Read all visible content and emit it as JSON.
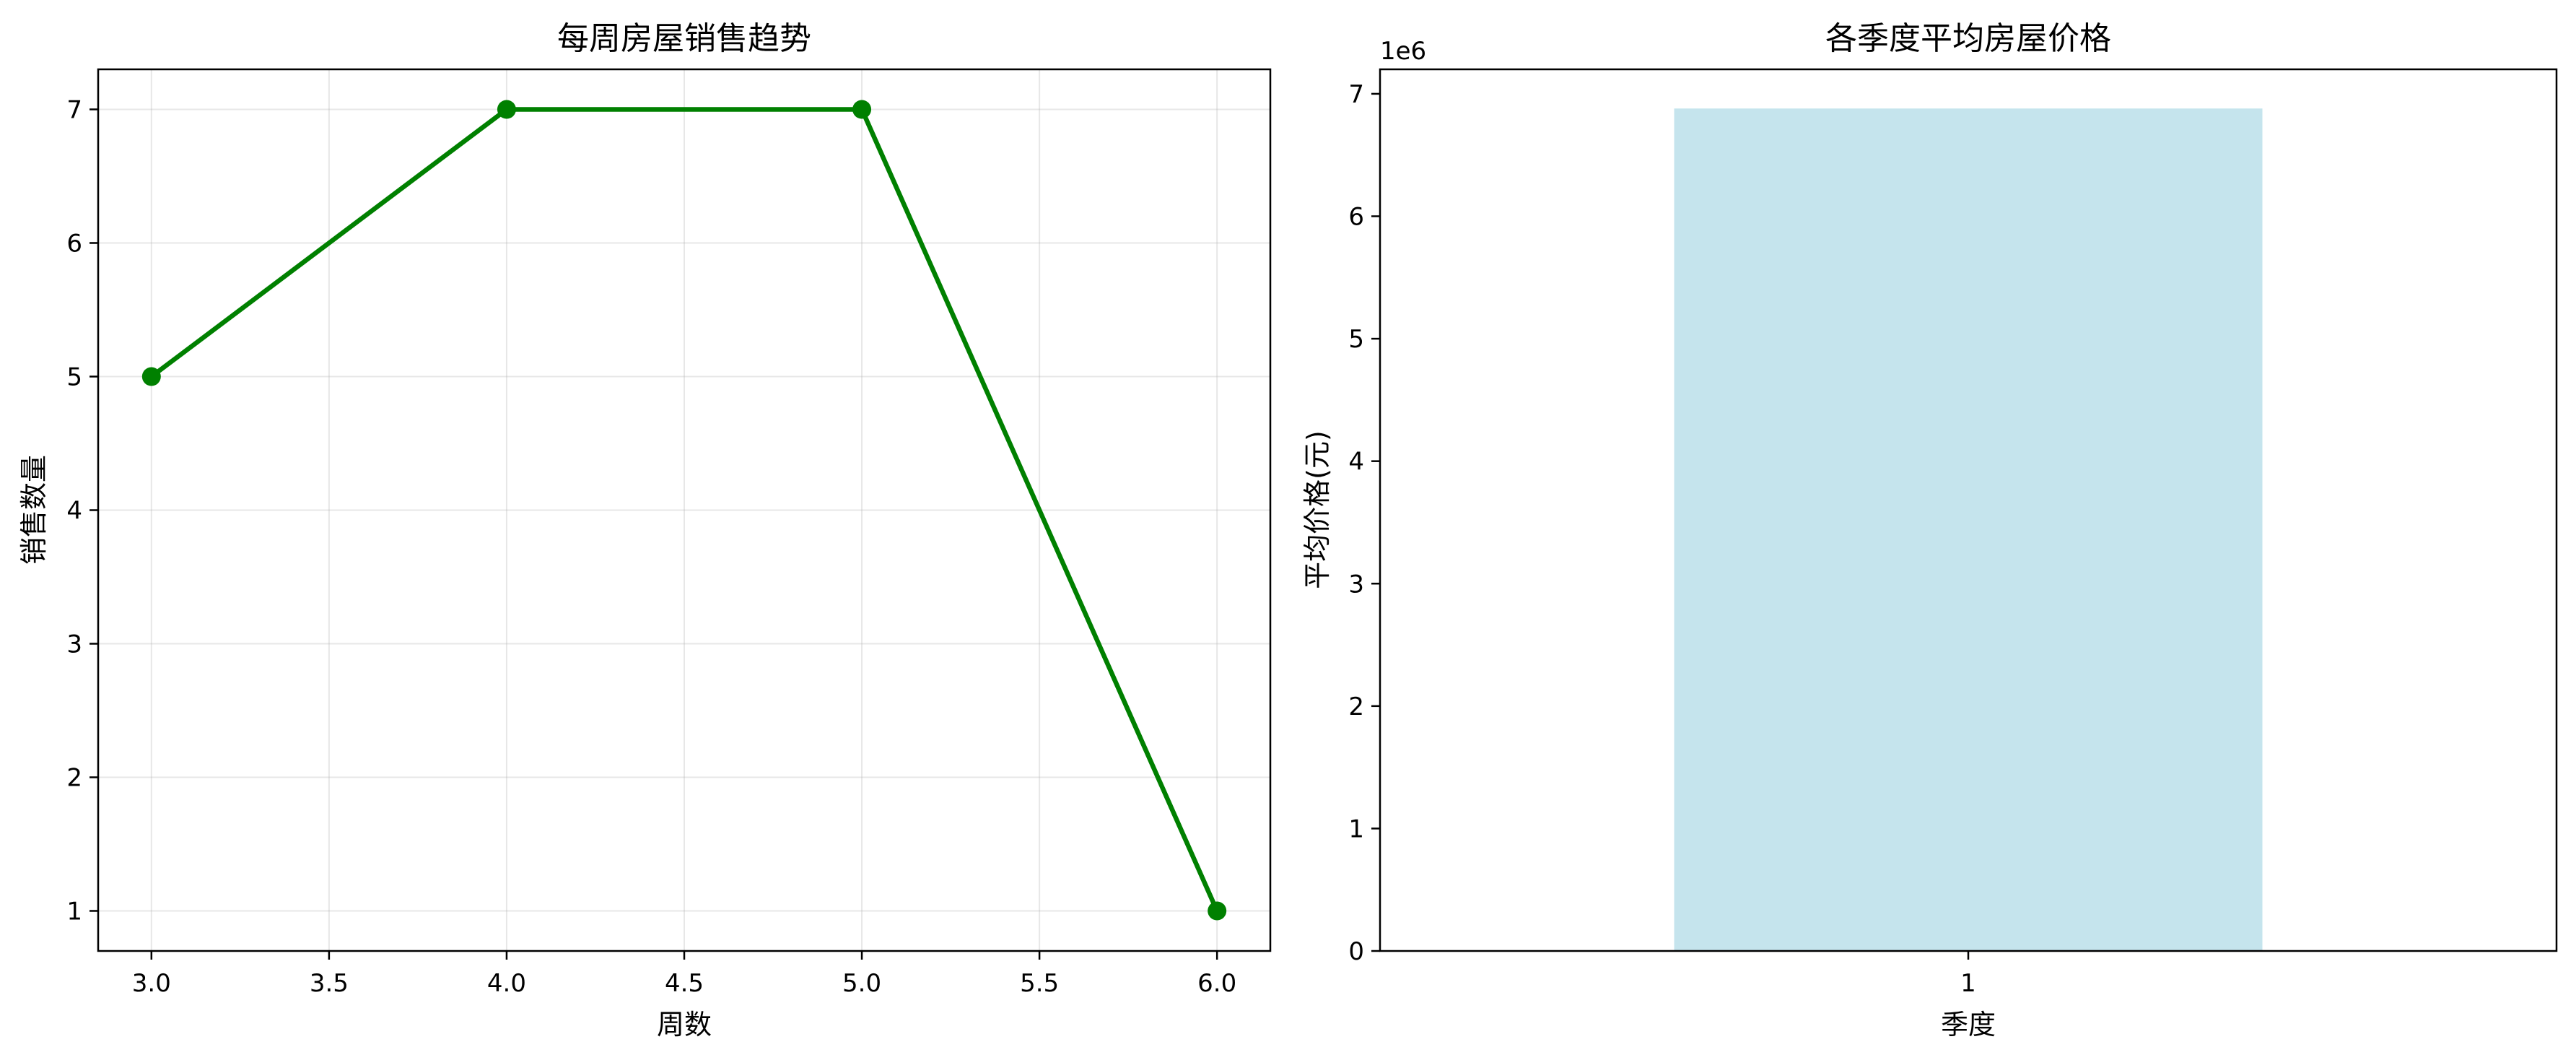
{
  "chart_data": [
    {
      "type": "line",
      "title": "每周房屋销售趋势",
      "xlabel": "周数",
      "ylabel": "销售数量",
      "x": [
        3.0,
        4.0,
        5.0,
        6.0
      ],
      "series": [
        {
          "values": [
            5,
            7,
            7,
            1
          ],
          "color": "#008000",
          "marker": "circle"
        }
      ],
      "xlim": [
        2.85,
        6.15
      ],
      "ylim": [
        0.7,
        7.3
      ],
      "xticks": [
        "3.0",
        "3.5",
        "4.0",
        "4.5",
        "5.0",
        "5.5",
        "6.0"
      ],
      "yticks": [
        "1",
        "2",
        "3",
        "4",
        "5",
        "6",
        "7"
      ],
      "grid": true
    },
    {
      "type": "bar",
      "title": "各季度平均房屋价格",
      "xlabel": "季度",
      "ylabel": "平均价格(元)",
      "categories": [
        "1"
      ],
      "values": [
        6880000
      ],
      "color": "#add8e6",
      "ylim": [
        0,
        7200000
      ],
      "yticks": [
        "0",
        "1",
        "2",
        "3",
        "4",
        "5",
        "6",
        "7"
      ],
      "offset_label": "1e6",
      "grid": false
    }
  ]
}
